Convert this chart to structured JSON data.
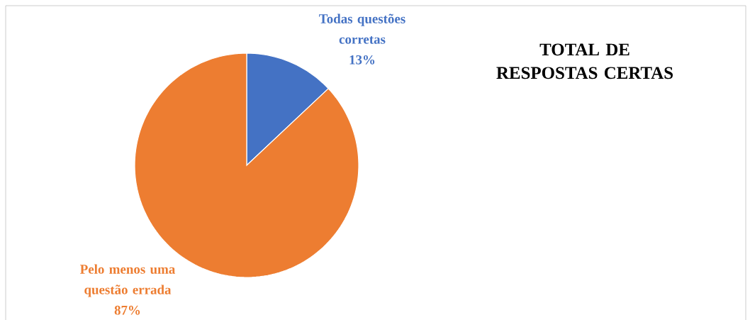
{
  "chart_data": {
    "type": "pie",
    "title": "TOTAL DE RESPOSTAS CERTAS",
    "categories": [
      "Todas questões corretas",
      "Pelo menos uma questão errada"
    ],
    "values": [
      13,
      87
    ],
    "value_labels": [
      "13%",
      "87%"
    ],
    "colors": [
      "#4472c4",
      "#ed7d31"
    ]
  }
}
